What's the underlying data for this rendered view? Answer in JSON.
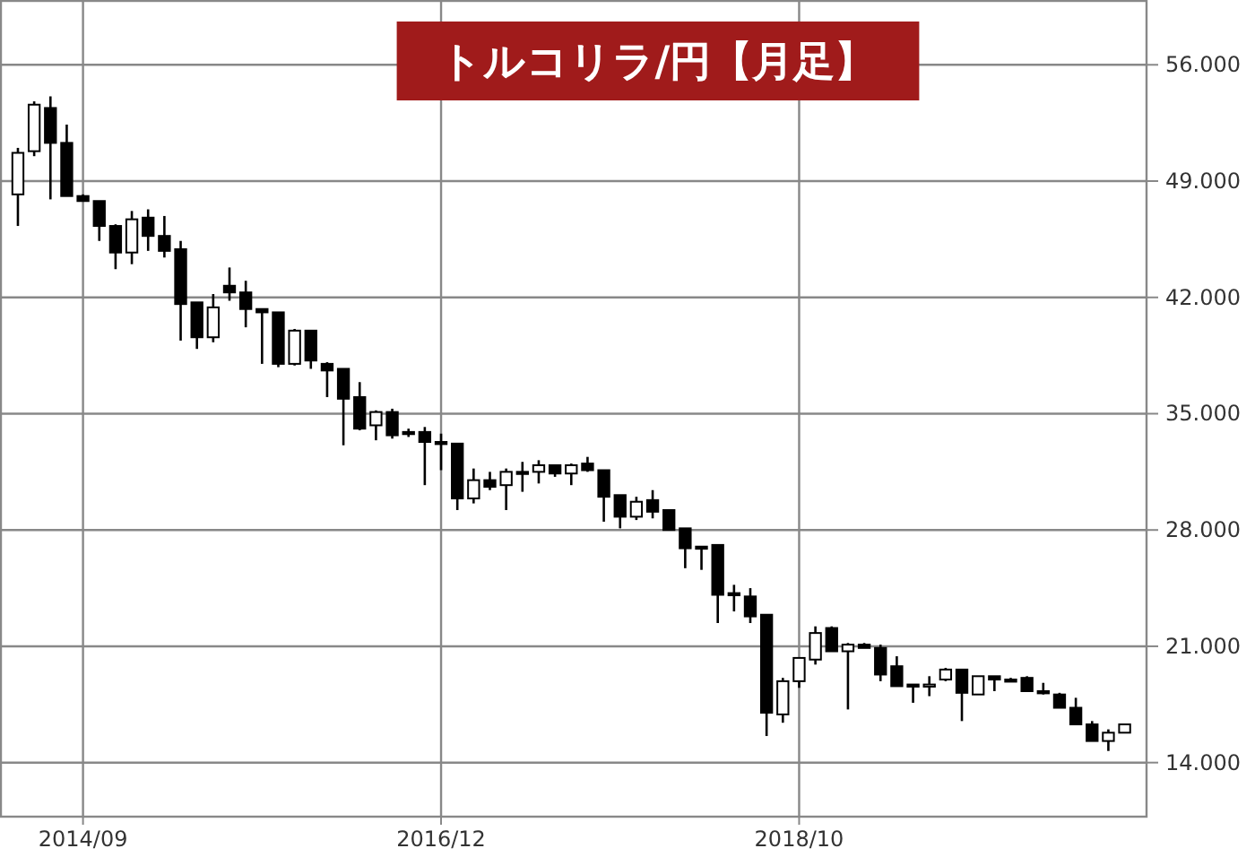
{
  "chart_data": {
    "type": "candlestick",
    "title": "トルコリラ/円【月足】",
    "categories": [
      null,
      null,
      null,
      null,
      "2014/09",
      null,
      null,
      null,
      null,
      null,
      null,
      null,
      null,
      null,
      null,
      null,
      null,
      null,
      null,
      null,
      null,
      null,
      null,
      null,
      null,
      null,
      "2016/12",
      null,
      null,
      null,
      null,
      null,
      null,
      null,
      null,
      null,
      null,
      null,
      null,
      null,
      null,
      null,
      null,
      null,
      null,
      null,
      null,
      null,
      "2018/10",
      null,
      null,
      null,
      null,
      null,
      null,
      null,
      null,
      null,
      null,
      null,
      null,
      null,
      null,
      null,
      null,
      null,
      null,
      null,
      null
    ],
    "ohlc": [
      [
        48.2,
        51.0,
        46.3,
        50.7
      ],
      [
        50.8,
        53.8,
        50.5,
        53.6
      ],
      [
        53.4,
        54.1,
        47.9,
        51.3
      ],
      [
        51.3,
        52.4,
        48.1,
        48.1
      ],
      [
        48.1,
        48.2,
        47.8,
        47.8
      ],
      [
        47.8,
        47.8,
        45.4,
        46.3
      ],
      [
        46.3,
        46.4,
        43.7,
        44.7
      ],
      [
        44.7,
        47.2,
        44.0,
        46.7
      ],
      [
        46.8,
        47.3,
        44.8,
        45.7
      ],
      [
        45.7,
        46.9,
        44.4,
        44.8
      ],
      [
        44.9,
        45.4,
        39.4,
        41.6
      ],
      [
        41.7,
        41.7,
        38.9,
        39.6
      ],
      [
        39.6,
        42.2,
        39.3,
        41.4
      ],
      [
        42.7,
        43.8,
        41.8,
        42.3
      ],
      [
        42.3,
        43.0,
        40.2,
        41.3
      ],
      [
        41.3,
        41.3,
        38.0,
        41.1
      ],
      [
        41.1,
        41.1,
        37.8,
        38.0
      ],
      [
        38.0,
        40.1,
        37.9,
        40.0
      ],
      [
        40.0,
        40.0,
        37.7,
        38.2
      ],
      [
        38.0,
        38.1,
        36.0,
        37.6
      ],
      [
        37.7,
        37.7,
        33.1,
        35.9
      ],
      [
        36.0,
        36.9,
        34.0,
        34.1
      ],
      [
        34.3,
        35.2,
        33.4,
        35.1
      ],
      [
        35.1,
        35.3,
        33.5,
        33.7
      ],
      [
        33.9,
        34.1,
        33.6,
        33.8
      ],
      [
        33.9,
        34.2,
        30.7,
        33.3
      ],
      [
        33.3,
        33.8,
        31.6,
        33.2
      ],
      [
        33.2,
        33.2,
        29.2,
        29.9
      ],
      [
        29.9,
        31.7,
        29.6,
        31.0
      ],
      [
        31.0,
        31.5,
        30.4,
        30.6
      ],
      [
        30.7,
        31.7,
        29.2,
        31.5
      ],
      [
        31.5,
        32.1,
        30.3,
        31.4
      ],
      [
        31.5,
        32.2,
        30.8,
        31.9
      ],
      [
        31.9,
        31.9,
        31.2,
        31.4
      ],
      [
        31.4,
        32.0,
        30.7,
        31.9
      ],
      [
        32.0,
        32.4,
        31.5,
        31.6
      ],
      [
        31.6,
        31.6,
        28.5,
        30.0
      ],
      [
        30.1,
        30.1,
        28.1,
        28.8
      ],
      [
        28.8,
        30.0,
        28.6,
        29.7
      ],
      [
        29.8,
        30.4,
        28.7,
        29.1
      ],
      [
        29.2,
        29.2,
        28.0,
        28.0
      ],
      [
        28.1,
        28.1,
        25.7,
        26.9
      ],
      [
        27.0,
        27.0,
        25.6,
        26.9
      ],
      [
        27.1,
        27.1,
        22.4,
        24.1
      ],
      [
        24.2,
        24.7,
        23.1,
        24.1
      ],
      [
        24.0,
        24.5,
        22.4,
        22.8
      ],
      [
        22.9,
        22.9,
        15.6,
        17.0
      ],
      [
        16.9,
        19.1,
        16.4,
        18.9
      ],
      [
        18.9,
        20.3,
        18.5,
        20.3
      ],
      [
        20.2,
        22.2,
        19.9,
        21.8
      ],
      [
        22.1,
        22.2,
        20.7,
        20.7
      ],
      [
        20.7,
        21.2,
        17.2,
        21.1
      ],
      [
        21.1,
        21.2,
        20.9,
        20.9
      ],
      [
        20.9,
        21.1,
        18.9,
        19.3
      ],
      [
        19.8,
        20.4,
        18.6,
        18.6
      ],
      [
        18.7,
        18.7,
        17.6,
        18.6
      ],
      [
        18.6,
        19.2,
        18.0,
        18.7
      ],
      [
        19.0,
        19.7,
        18.9,
        19.6
      ],
      [
        19.6,
        19.6,
        16.5,
        18.2
      ],
      [
        18.1,
        19.2,
        18.1,
        19.2
      ],
      [
        19.2,
        19.2,
        18.3,
        19.0
      ],
      [
        19.0,
        19.1,
        18.9,
        18.95
      ],
      [
        19.1,
        19.2,
        18.3,
        18.3
      ],
      [
        18.3,
        18.8,
        18.1,
        18.2
      ],
      [
        18.1,
        18.2,
        17.3,
        17.3
      ],
      [
        17.3,
        17.9,
        16.3,
        16.3
      ],
      [
        16.3,
        16.5,
        15.3,
        15.3
      ],
      [
        15.3,
        16.0,
        14.7,
        15.8
      ],
      [
        15.8,
        16.3,
        15.8,
        16.3
      ]
    ],
    "ylim": [
      10.8,
      59.9
    ],
    "yticks": [
      {
        "value": 14,
        "label": "14.000"
      },
      {
        "value": 21,
        "label": "21.000"
      },
      {
        "value": 28,
        "label": "28.000"
      },
      {
        "value": 35,
        "label": "35.000"
      },
      {
        "value": 42,
        "label": "42.000"
      },
      {
        "value": 49,
        "label": "49.000"
      },
      {
        "value": 56,
        "label": "56.000"
      }
    ],
    "grid": true
  }
}
